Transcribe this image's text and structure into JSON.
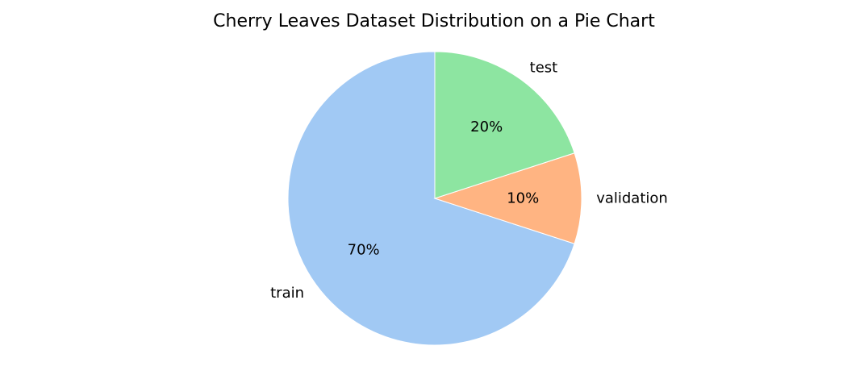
{
  "chart_data": {
    "type": "pie",
    "title": "Cherry Leaves Dataset Distribution on a Pie Chart",
    "start_angle_deg": 90,
    "direction": "counterclockwise",
    "slices": [
      {
        "label": "train",
        "value": 70,
        "pct_label": "70%",
        "color": "#a1c9f4"
      },
      {
        "label": "validation",
        "value": 10,
        "pct_label": "10%",
        "color": "#ffb482"
      },
      {
        "label": "test",
        "value": 20,
        "pct_label": "20%",
        "color": "#8de5a1"
      }
    ]
  }
}
